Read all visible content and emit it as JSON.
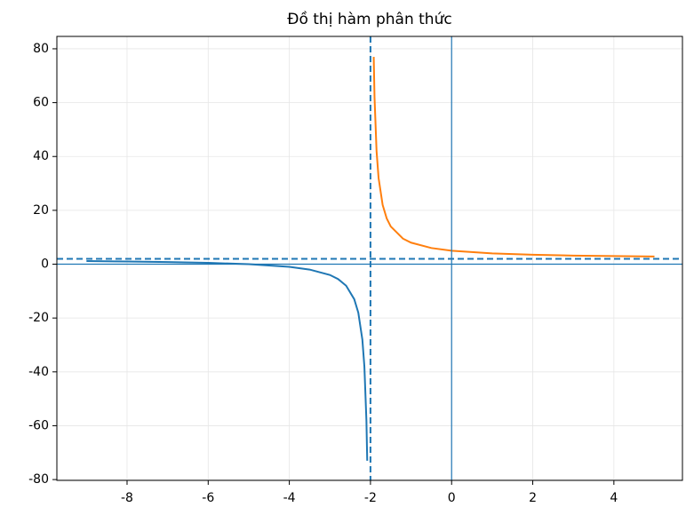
{
  "chart_data": {
    "type": "line",
    "title": "Đồ thị hàm phân thức",
    "series": [
      {
        "color": "#1f77b4",
        "x": [
          -9,
          -8,
          -7,
          -6,
          -5,
          -4,
          -3.5,
          -3,
          -2.8,
          -2.6,
          -2.4,
          -2.3,
          -2.2,
          -2.15,
          -2.1,
          -2.08
        ],
        "values": [
          1.143,
          1,
          0.8,
          0.5,
          0,
          -1,
          -2,
          -4,
          -5.5,
          -8,
          -13,
          -18,
          -28,
          -38,
          -58,
          -73
        ]
      },
      {
        "color": "#ff7f0e",
        "x": [
          -1.92,
          -1.9,
          -1.85,
          -1.8,
          -1.7,
          -1.6,
          -1.5,
          -1.2,
          -1,
          -0.5,
          0,
          1,
          2,
          3,
          4,
          5
        ],
        "values": [
          77,
          62,
          42,
          32,
          22,
          17,
          14,
          9.5,
          8,
          6,
          5,
          4,
          3.5,
          3.2,
          3,
          2.857
        ]
      }
    ],
    "vlines": [
      {
        "x": -2,
        "style": "dashed",
        "color": "#1f77b4"
      },
      {
        "x": 0,
        "style": "solid",
        "color": "#1f77b4"
      }
    ],
    "hlines": [
      {
        "y": 2,
        "style": "dashed",
        "color": "#1f77b4"
      },
      {
        "y": 0,
        "style": "solid",
        "color": "#1f77b4"
      }
    ],
    "xlim": [
      -9.73,
      5.69
    ],
    "xticks": [
      -8,
      -6,
      -4,
      -2,
      0,
      2,
      4
    ],
    "ylim": [
      -80.3,
      84.6
    ],
    "yticks": [
      -80,
      -60,
      -40,
      -20,
      0,
      20,
      40,
      60,
      80
    ],
    "grid": true
  }
}
